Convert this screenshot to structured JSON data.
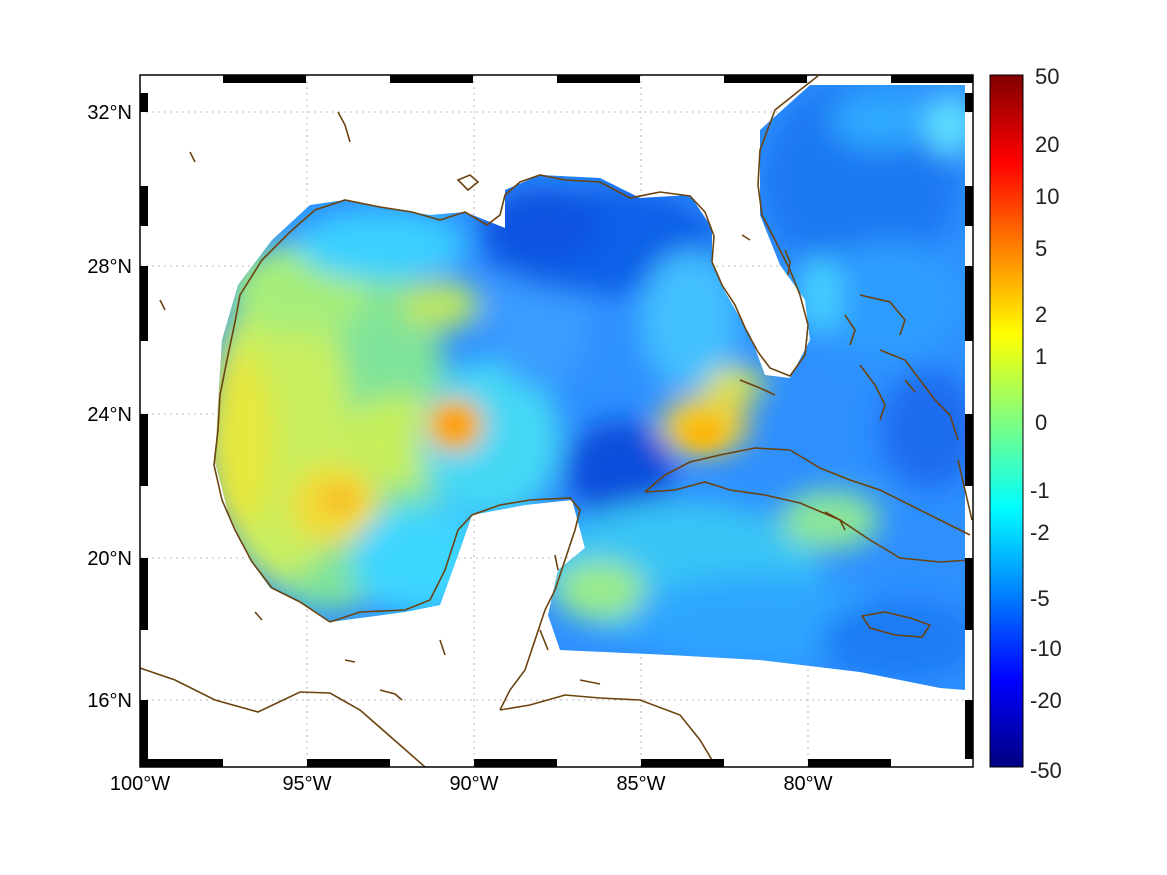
{
  "map": {
    "region": "Gulf of Mexico and western Caribbean",
    "projection": "geographic",
    "lon_range": [
      -100,
      -75
    ],
    "lat_range": [
      14,
      33
    ],
    "grid": true,
    "frame": "black-white dashed border",
    "colors": {
      "coastline": "#6b4310",
      "land_no_data": "#ffffff",
      "grid": "#b0b0b0"
    }
  },
  "axes": {
    "x_ticks": [
      {
        "value": -100,
        "label": "100°W"
      },
      {
        "value": -95,
        "label": "95°W"
      },
      {
        "value": -90,
        "label": "90°W"
      },
      {
        "value": -85,
        "label": "85°W"
      },
      {
        "value": -80,
        "label": "80°W"
      }
    ],
    "y_ticks": [
      {
        "value": 32,
        "label": "32°N"
      },
      {
        "value": 28,
        "label": "28°N"
      },
      {
        "value": 24,
        "label": "24°N"
      },
      {
        "value": 20,
        "label": "20°N"
      },
      {
        "value": 16,
        "label": "16°N"
      }
    ]
  },
  "colorbar": {
    "colormap": "jet",
    "scale": "nonlinear (symmetric)",
    "tick_labels": [
      "50",
      "20",
      "10",
      "5",
      "2",
      "1",
      "0",
      "-1",
      "-2",
      "-5",
      "-10",
      "-20",
      "-50"
    ]
  },
  "field_features": [
    {
      "name": "western-gulf-high",
      "lon": -94.5,
      "lat": 21.5,
      "value": 1.5
    },
    {
      "name": "central-gulf-high",
      "lon": -90.5,
      "lat": 23.8,
      "value": 3
    },
    {
      "name": "florida-straits-high",
      "lon": -83.3,
      "lat": 23.5,
      "value": 2.5
    },
    {
      "name": "yucatan-channel-low",
      "lon": -85.5,
      "lat": 22.3,
      "value": -8
    },
    {
      "name": "northeast-gulf-low",
      "lon": -87,
      "lat": 28.5,
      "value": -7
    },
    {
      "name": "atlantic-low",
      "lon": -79,
      "lat": 30,
      "value": -5
    }
  ]
}
